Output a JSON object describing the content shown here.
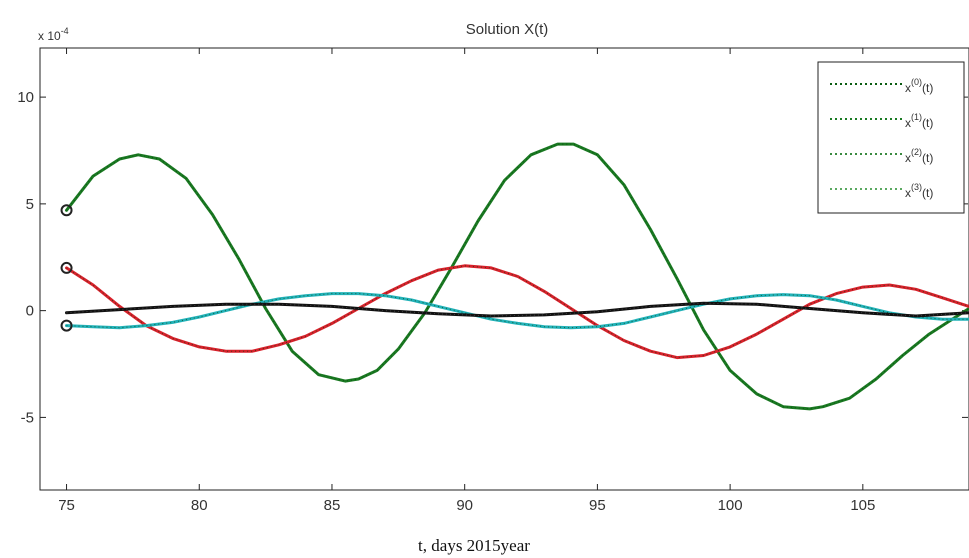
{
  "chart_data": {
    "type": "line",
    "title": "Solution X(t)",
    "xlabel": "t, days  2015year",
    "ylabel": "",
    "y_multiplier": "x 10",
    "y_multiplier_exp": "-4",
    "xlim": [
      74,
      109
    ],
    "ylim": [
      -8.4,
      12.3
    ],
    "xticks": [
      75,
      80,
      85,
      90,
      95,
      100,
      105
    ],
    "xtick_labels": [
      "75",
      "80",
      "85",
      "90",
      "95",
      "100",
      "105"
    ],
    "yticks": [
      -5,
      0,
      5,
      10
    ],
    "ytick_labels": [
      "-5",
      "0",
      "5",
      "10"
    ],
    "grid": false,
    "legend": {
      "position": "top-right",
      "entries": [
        {
          "base": "x",
          "sup": "(0)",
          "tail": "(t)"
        },
        {
          "base": "x",
          "sup": "(1)",
          "tail": "(t)"
        },
        {
          "base": "x",
          "sup": "(2)",
          "tail": "(t)"
        },
        {
          "base": "x",
          "sup": "(3)",
          "tail": "(t)"
        }
      ]
    },
    "initial_markers": [
      {
        "x": 75,
        "y": 4.7
      },
      {
        "x": 75,
        "y": 2.0
      },
      {
        "x": 75,
        "y": -0.7
      }
    ],
    "series": [
      {
        "color": "#1a7a22",
        "x": [
          75,
          76,
          77,
          77.7,
          78.5,
          79.5,
          80.5,
          81.5,
          82.5,
          83.5,
          84.5,
          85.5,
          86,
          86.7,
          87.5,
          88.5,
          89.5,
          90.5,
          91.5,
          92.5,
          93.5,
          94.1,
          95,
          96,
          97,
          98,
          99,
          100,
          101,
          102,
          103,
          103.5,
          104.5,
          105.5,
          106.5,
          107.5,
          108.5,
          109
        ],
        "y": [
          4.7,
          6.3,
          7.1,
          7.3,
          7.1,
          6.2,
          4.5,
          2.4,
          0.1,
          -1.9,
          -3.0,
          -3.3,
          -3.2,
          -2.8,
          -1.8,
          -0.1,
          2.0,
          4.2,
          6.1,
          7.3,
          7.8,
          7.8,
          7.3,
          5.9,
          3.8,
          1.5,
          -0.9,
          -2.8,
          -3.9,
          -4.5,
          -4.6,
          -4.5,
          -4.1,
          -3.2,
          -2.1,
          -1.1,
          -0.3,
          0.1
        ]
      },
      {
        "color": "#d8212b",
        "x": [
          75,
          76,
          77,
          78,
          79,
          80,
          81,
          82,
          83,
          84,
          85,
          86,
          87,
          88,
          89,
          90,
          91,
          92,
          93,
          94,
          95,
          96,
          97,
          98,
          99,
          100,
          101,
          102,
          103,
          104,
          105,
          106,
          107,
          108,
          109
        ],
        "y": [
          2.0,
          1.2,
          0.2,
          -0.7,
          -1.3,
          -1.7,
          -1.9,
          -1.9,
          -1.6,
          -1.2,
          -0.6,
          0.1,
          0.8,
          1.4,
          1.9,
          2.1,
          2.0,
          1.6,
          0.9,
          0.1,
          -0.7,
          -1.4,
          -1.9,
          -2.2,
          -2.1,
          -1.7,
          -1.1,
          -0.4,
          0.3,
          0.8,
          1.1,
          1.2,
          1.0,
          0.6,
          0.2
        ]
      },
      {
        "color": "#22b2b8",
        "x": [
          75,
          76,
          77,
          78,
          79,
          80,
          81,
          82,
          83,
          84,
          85,
          86,
          87,
          88,
          89,
          90,
          91,
          92,
          93,
          94,
          95,
          96,
          97,
          98,
          99,
          100,
          101,
          102,
          103,
          104,
          105,
          106,
          107,
          108,
          109
        ],
        "y": [
          -0.7,
          -0.75,
          -0.8,
          -0.7,
          -0.55,
          -0.3,
          0.0,
          0.3,
          0.55,
          0.7,
          0.8,
          0.8,
          0.7,
          0.5,
          0.2,
          -0.1,
          -0.4,
          -0.6,
          -0.75,
          -0.8,
          -0.75,
          -0.6,
          -0.3,
          0.0,
          0.3,
          0.55,
          0.7,
          0.75,
          0.7,
          0.5,
          0.2,
          -0.1,
          -0.3,
          -0.4,
          -0.4
        ]
      },
      {
        "color": "#111111",
        "x": [
          75,
          77,
          79,
          81,
          83,
          85,
          87,
          89,
          91,
          93,
          95,
          97,
          99,
          101,
          103,
          105,
          107,
          109
        ],
        "y": [
          -0.1,
          0.05,
          0.2,
          0.3,
          0.3,
          0.2,
          0.0,
          -0.15,
          -0.25,
          -0.2,
          -0.05,
          0.2,
          0.35,
          0.3,
          0.1,
          -0.1,
          -0.25,
          -0.1
        ]
      }
    ]
  }
}
